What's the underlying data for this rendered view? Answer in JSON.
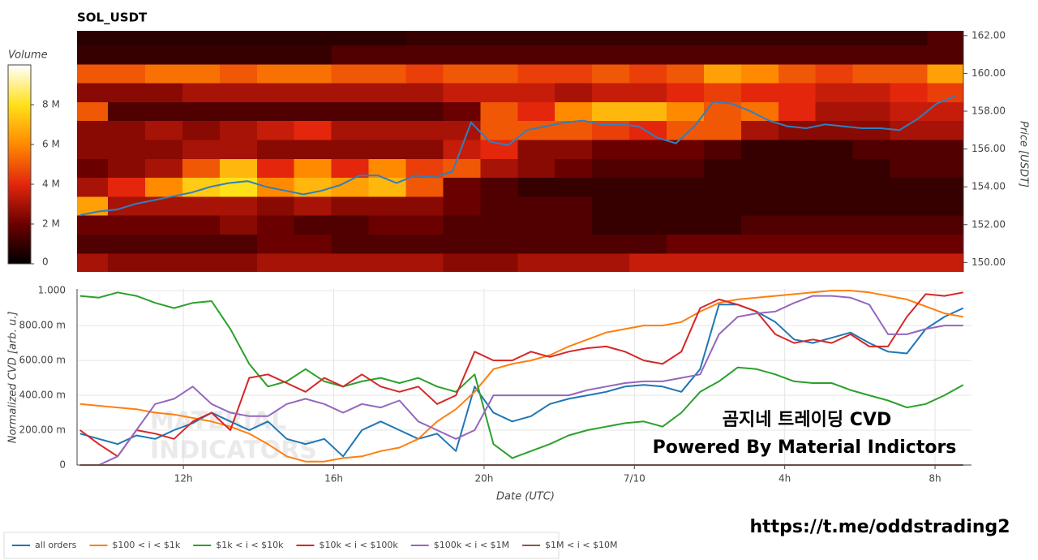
{
  "chart_data": [
    {
      "type": "heatmap",
      "title": "SOL_USDT",
      "y_label": "Price [USDT]",
      "xlim": [
        9.17,
        32.97
      ],
      "ylim": [
        149.5,
        162.25
      ],
      "yticks": [
        {
          "value": 150,
          "label": "150.00"
        },
        {
          "value": 152,
          "label": "152.00"
        },
        {
          "value": 154,
          "label": "154.00"
        },
        {
          "value": 156,
          "label": "156.00"
        },
        {
          "value": 158,
          "label": "158.00"
        },
        {
          "value": 160,
          "label": "160.00"
        },
        {
          "value": 162,
          "label": "162.00"
        }
      ],
      "bins": [
        9.17,
        10,
        11,
        12,
        13,
        14,
        15,
        16,
        17,
        18,
        19,
        20,
        21,
        22,
        23,
        24,
        25,
        26,
        27,
        28,
        29,
        30,
        31,
        32,
        32.97
      ],
      "rows": [
        150,
        151,
        152,
        153,
        154,
        155,
        156,
        157,
        158,
        159,
        160,
        161,
        162
      ],
      "z": [
        [
          3000000,
          2500000,
          2500000,
          2500000,
          2500000,
          3000000,
          3000000,
          3000000,
          3000000,
          3000000,
          2500000,
          2500000,
          3000000,
          3000000,
          3000000,
          3500000,
          3500000,
          3500000,
          3500000,
          3500000,
          3500000,
          3500000,
          3500000,
          3500000
        ],
        [
          1500000,
          1500000,
          1500000,
          1500000,
          1500000,
          2000000,
          2000000,
          1500000,
          1500000,
          1500000,
          1500000,
          1500000,
          1500000,
          1500000,
          1500000,
          1500000,
          2000000,
          2000000,
          2000000,
          2000000,
          2000000,
          2000000,
          2000000,
          2000000
        ],
        [
          2000000,
          2000000,
          2000000,
          2000000,
          2500000,
          2000000,
          1500000,
          1500000,
          2000000,
          2000000,
          1500000,
          1500000,
          1500000,
          1500000,
          1000000,
          1000000,
          1000000,
          1000000,
          1500000,
          1500000,
          1500000,
          1500000,
          1500000,
          1500000
        ],
        [
          6500000,
          3000000,
          3000000,
          3000000,
          3000000,
          2500000,
          3000000,
          2500000,
          2500000,
          2500000,
          2000000,
          1500000,
          1500000,
          1500000,
          1000000,
          1000000,
          1000000,
          1000000,
          1000000,
          1000000,
          1000000,
          1000000,
          1000000,
          1000000
        ],
        [
          3000000,
          4000000,
          6000000,
          7500000,
          8000000,
          6000000,
          7000000,
          6500000,
          7000000,
          5000000,
          2000000,
          1500000,
          1000000,
          1000000,
          1000000,
          1000000,
          1000000,
          1000000,
          1000000,
          1000000,
          1000000,
          1000000,
          1000000,
          1000000
        ],
        [
          2000000,
          2500000,
          3000000,
          5000000,
          7000000,
          4000000,
          6000000,
          4000000,
          6000000,
          4500000,
          5000000,
          3000000,
          2500000,
          2000000,
          1500000,
          1500000,
          1500000,
          1000000,
          1000000,
          1000000,
          1000000,
          1000000,
          1500000,
          1500000
        ],
        [
          2500000,
          2500000,
          2500000,
          3000000,
          3000000,
          2500000,
          2500000,
          2500000,
          2500000,
          2500000,
          3500000,
          4000000,
          2500000,
          2500000,
          2000000,
          2000000,
          2000000,
          1500000,
          1000000,
          1000000,
          1000000,
          1500000,
          1500000,
          1500000
        ],
        [
          2500000,
          2500000,
          3000000,
          2500000,
          3000000,
          3500000,
          4000000,
          3000000,
          3000000,
          3000000,
          3000000,
          5000000,
          5000000,
          5000000,
          4500000,
          4000000,
          5000000,
          5000000,
          3000000,
          2500000,
          2500000,
          2500000,
          3000000,
          3000000
        ],
        [
          5000000,
          1500000,
          1500000,
          1500000,
          1500000,
          1500000,
          1500000,
          1500000,
          1500000,
          1500000,
          2000000,
          5000000,
          4000000,
          6000000,
          7000000,
          7000000,
          6000000,
          5000000,
          5500000,
          4000000,
          3000000,
          3000000,
          3500000,
          3500000
        ],
        [
          2500000,
          2500000,
          2500000,
          3000000,
          3000000,
          3000000,
          3000000,
          3000000,
          3000000,
          3000000,
          3500000,
          3500000,
          3500000,
          3000000,
          3500000,
          3500000,
          4000000,
          4500000,
          4000000,
          4000000,
          3500000,
          3500000,
          4000000,
          4500000
        ],
        [
          5000000,
          5000000,
          5500000,
          5500000,
          5000000,
          5500000,
          5500000,
          5000000,
          5000000,
          4500000,
          5000000,
          5000000,
          4500000,
          4500000,
          5000000,
          4500000,
          5000000,
          6500000,
          6000000,
          5000000,
          4500000,
          5000000,
          5000000,
          6500000
        ],
        [
          1000000,
          1000000,
          1000000,
          1000000,
          1000000,
          1000000,
          1000000,
          1500000,
          1500000,
          1500000,
          1500000,
          1500000,
          1500000,
          1500000,
          1500000,
          1500000,
          1500000,
          1500000,
          1500000,
          1500000,
          1500000,
          1500000,
          1500000,
          1500000
        ],
        [
          800000,
          800000,
          800000,
          800000,
          800000,
          800000,
          800000,
          800000,
          800000,
          1000000,
          1000000,
          1000000,
          1000000,
          1000000,
          1000000,
          1000000,
          1000000,
          1000000,
          1000000,
          1000000,
          1000000,
          1000000,
          1000000,
          1500000
        ]
      ],
      "colorbar": {
        "title": "Volume",
        "zlim": [
          0,
          10000000
        ],
        "ticks": [
          0,
          {
            "value": 2000000,
            "label": "2 M"
          },
          {
            "value": 4000000,
            "label": "4 M"
          },
          {
            "value": 6000000,
            "label": "6 M"
          },
          {
            "value": 8000000,
            "label": "8 M"
          }
        ],
        "colorscale": [
          "#000000",
          "#6b0000",
          "#e3260c",
          "#ff8a00",
          "#ffe11a",
          "#ffffff"
        ]
      },
      "x": [
        9.25,
        9.75,
        10.25,
        10.75,
        11.25,
        11.75,
        12.25,
        12.75,
        13.25,
        13.75,
        14.25,
        14.75,
        15.25,
        15.75,
        16.25,
        16.75,
        17.25,
        17.75,
        18.25,
        18.75,
        19.25,
        19.75,
        20.25,
        20.75,
        21.25,
        21.75,
        22.25,
        22.75,
        23.25,
        23.75,
        24.25,
        24.75,
        25.25,
        25.75,
        26.25,
        26.75,
        27.25,
        27.75,
        28.25,
        28.75,
        29.25,
        29.75,
        30.25,
        30.75,
        31.25,
        31.75,
        32.25,
        32.75
      ],
      "series": [
        {
          "color": "#2f7fc0",
          "values": [
            152.5,
            152.7,
            152.8,
            153.1,
            153.3,
            153.5,
            153.7,
            154.0,
            154.2,
            154.3,
            154.0,
            153.8,
            153.6,
            153.8,
            154.1,
            154.6,
            154.6,
            154.2,
            154.6,
            154.5,
            154.8,
            157.4,
            156.4,
            156.2,
            157.0,
            157.2,
            157.4,
            157.5,
            157.3,
            157.3,
            157.2,
            156.6,
            156.3,
            157.2,
            158.5,
            158.4,
            158.0,
            157.5,
            157.2,
            157.1,
            157.3,
            157.2,
            157.1,
            157.1,
            157.0,
            157.6,
            158.4,
            158.8
          ]
        }
      ]
    },
    {
      "type": "line",
      "x_label": "Date (UTC)",
      "y_label": "Normalized CVD [arb. u.]",
      "xlim": [
        9.17,
        32.97
      ],
      "ylim": [
        0,
        1.01
      ],
      "xticks": [
        {
          "value": 12,
          "label": "12h"
        },
        {
          "value": 16,
          "label": "16h"
        },
        {
          "value": 20,
          "label": "20h"
        },
        {
          "value": 24,
          "label": "7/10"
        },
        {
          "value": 28,
          "label": "4h"
        },
        {
          "value": 32,
          "label": "8h"
        }
      ],
      "yticks": [
        0,
        {
          "value": 0.2,
          "label": "200.00 m"
        },
        {
          "value": 0.4,
          "label": "400.00 m"
        },
        {
          "value": 0.6,
          "label": "600.00 m"
        },
        {
          "value": 0.8,
          "label": "800.00 m"
        },
        {
          "value": 1,
          "label": "1.000"
        }
      ],
      "grid": true,
      "legend": "bottom-left",
      "x": [
        9.25,
        9.75,
        10.25,
        10.75,
        11.25,
        11.75,
        12.25,
        12.75,
        13.25,
        13.75,
        14.25,
        14.75,
        15.25,
        15.75,
        16.25,
        16.75,
        17.25,
        17.75,
        18.25,
        18.75,
        19.25,
        19.75,
        20.25,
        20.75,
        21.25,
        21.75,
        22.25,
        22.75,
        23.25,
        23.75,
        24.25,
        24.75,
        25.25,
        25.75,
        26.25,
        26.75,
        27.25,
        27.75,
        28.25,
        28.75,
        29.25,
        29.75,
        30.25,
        30.75,
        31.25,
        31.75,
        32.25,
        32.75
      ],
      "series": [
        {
          "name": "all orders",
          "color": "#1f77b4",
          "values": [
            0.18,
            0.15,
            0.12,
            0.17,
            0.15,
            0.2,
            0.24,
            0.3,
            0.25,
            0.2,
            0.25,
            0.15,
            0.12,
            0.15,
            0.05,
            0.2,
            0.25,
            0.2,
            0.15,
            0.18,
            0.08,
            0.45,
            0.3,
            0.25,
            0.28,
            0.35,
            0.38,
            0.4,
            0.42,
            0.45,
            0.46,
            0.45,
            0.42,
            0.55,
            0.92,
            0.92,
            0.88,
            0.82,
            0.72,
            0.7,
            0.73,
            0.76,
            0.7,
            0.65,
            0.64,
            0.78,
            0.85,
            0.9
          ]
        },
        {
          "name": "$100 < i < $1k",
          "color": "#ff7f0e",
          "values": [
            0.35,
            0.34,
            0.33,
            0.32,
            0.3,
            0.29,
            0.27,
            0.25,
            0.22,
            0.18,
            0.12,
            0.05,
            0.02,
            0.02,
            0.04,
            0.05,
            0.08,
            0.1,
            0.15,
            0.25,
            0.32,
            0.42,
            0.55,
            0.58,
            0.6,
            0.63,
            0.68,
            0.72,
            0.76,
            0.78,
            0.8,
            0.8,
            0.82,
            0.88,
            0.93,
            0.95,
            0.96,
            0.97,
            0.98,
            0.99,
            1.0,
            1.0,
            0.99,
            0.97,
            0.95,
            0.91,
            0.87,
            0.85
          ]
        },
        {
          "name": "$1k < i < $10k",
          "color": "#2ca02c",
          "values": [
            0.97,
            0.96,
            0.99,
            0.97,
            0.93,
            0.9,
            0.93,
            0.94,
            0.78,
            0.58,
            0.45,
            0.48,
            0.55,
            0.48,
            0.45,
            0.48,
            0.5,
            0.47,
            0.5,
            0.45,
            0.42,
            0.52,
            0.12,
            0.04,
            0.08,
            0.12,
            0.17,
            0.2,
            0.22,
            0.24,
            0.25,
            0.22,
            0.3,
            0.42,
            0.48,
            0.56,
            0.55,
            0.52,
            0.48,
            0.47,
            0.47,
            0.43,
            0.4,
            0.37,
            0.33,
            0.35,
            0.4,
            0.46
          ]
        },
        {
          "name": "$10k < i < $100k",
          "color": "#d62728",
          "values": [
            0.2,
            0.12,
            0.05,
            0.2,
            0.18,
            0.15,
            0.25,
            0.3,
            0.2,
            0.5,
            0.52,
            0.47,
            0.42,
            0.5,
            0.45,
            0.52,
            0.45,
            0.42,
            0.45,
            0.35,
            0.4,
            0.65,
            0.6,
            0.6,
            0.65,
            0.62,
            0.65,
            0.67,
            0.68,
            0.65,
            0.6,
            0.58,
            0.65,
            0.9,
            0.95,
            0.92,
            0.88,
            0.75,
            0.7,
            0.72,
            0.7,
            0.75,
            0.68,
            0.68,
            0.85,
            0.98,
            0.97,
            0.99
          ]
        },
        {
          "name": "$100k < i < $1M",
          "color": "#9467bd",
          "values": [
            0,
            0,
            0.05,
            0.2,
            0.35,
            0.38,
            0.45,
            0.35,
            0.3,
            0.28,
            0.28,
            0.35,
            0.38,
            0.35,
            0.3,
            0.35,
            0.33,
            0.37,
            0.25,
            0.2,
            0.15,
            0.2,
            0.4,
            0.4,
            0.4,
            0.4,
            0.4,
            0.43,
            0.45,
            0.47,
            0.48,
            0.48,
            0.5,
            0.52,
            0.75,
            0.85,
            0.87,
            0.88,
            0.93,
            0.97,
            0.97,
            0.96,
            0.92,
            0.75,
            0.75,
            0.78,
            0.8,
            0.8
          ]
        },
        {
          "name": "$1M < i < $10M",
          "color": "#8c564b",
          "values": [
            0,
            0,
            0,
            0,
            0,
            0,
            0,
            0,
            0,
            0,
            0,
            0,
            0,
            0,
            0,
            0,
            0,
            0,
            0,
            0,
            0,
            0,
            0,
            0,
            0,
            0,
            0,
            0,
            0,
            0,
            0,
            0,
            0,
            0,
            0,
            0,
            0,
            0,
            0,
            0,
            0,
            0,
            0,
            0,
            0,
            0,
            0,
            0
          ]
        }
      ],
      "annotations": [
        "곰지네 트레이딩 CVD",
        "Powered By Material Indictors"
      ],
      "watermark": [
        "MATERIAL",
        "INDICATORS"
      ]
    }
  ],
  "link": "https://t.me/oddstrading2"
}
